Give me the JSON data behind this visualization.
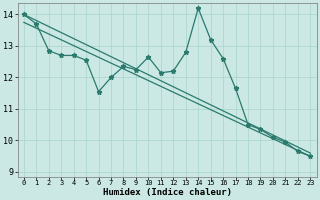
{
  "xlabel": "Humidex (Indice chaleur)",
  "background_color": "#cbe8e4",
  "line_color": "#2a7a6e",
  "xlim": [
    -0.5,
    23.5
  ],
  "ylim": [
    8.85,
    14.35
  ],
  "yticks": [
    9,
    10,
    11,
    12,
    13,
    14
  ],
  "xticks": [
    0,
    1,
    2,
    3,
    4,
    5,
    6,
    7,
    8,
    9,
    10,
    11,
    12,
    13,
    14,
    15,
    16,
    17,
    18,
    19,
    20,
    21,
    22,
    23
  ],
  "data_x": [
    0,
    1,
    2,
    3,
    4,
    5,
    6,
    7,
    8,
    9,
    10,
    11,
    12,
    13,
    14,
    15,
    16,
    17,
    18,
    19,
    20,
    21,
    22,
    23
  ],
  "data_y": [
    14.0,
    13.7,
    12.85,
    12.7,
    12.7,
    12.55,
    11.55,
    12.0,
    12.35,
    12.25,
    12.65,
    12.15,
    12.2,
    12.8,
    14.2,
    13.2,
    12.6,
    11.65,
    10.5,
    10.35,
    10.1,
    9.95,
    9.65,
    9.5
  ],
  "trend1_x": [
    0,
    23
  ],
  "trend1_y": [
    14.0,
    9.6
  ],
  "trend2_x": [
    0,
    23
  ],
  "trend2_y": [
    13.75,
    9.5
  ]
}
